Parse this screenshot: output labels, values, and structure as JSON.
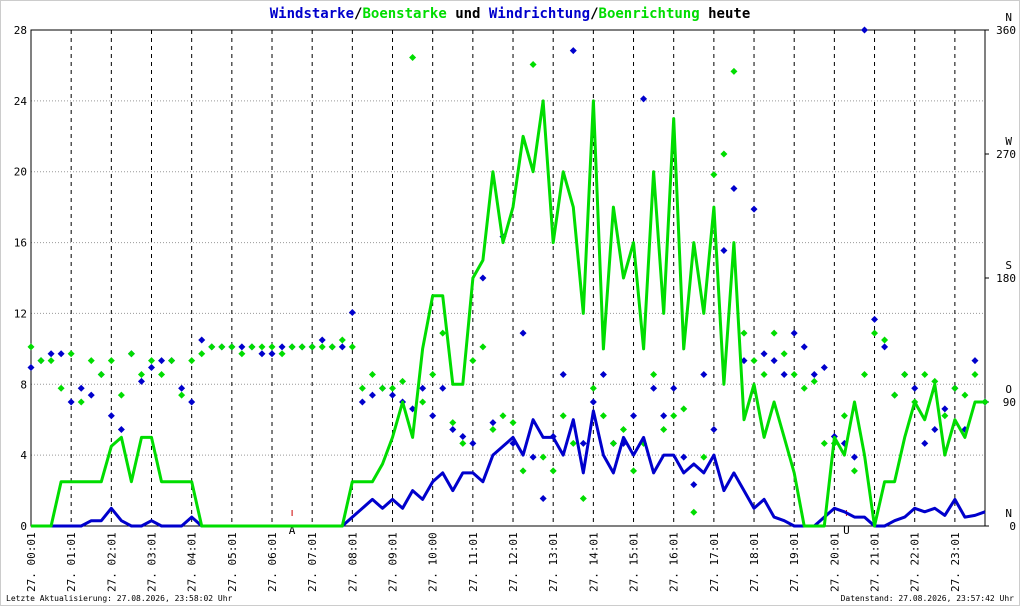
{
  "chart_data": {
    "type": "line",
    "title_parts": [
      {
        "text": "Windstarke",
        "color": "#0000cc"
      },
      {
        "text": "/",
        "color": "#000000"
      },
      {
        "text": "Boenstarke",
        "color": "#00dd00"
      },
      {
        "text": " und ",
        "color": "#000000"
      },
      {
        "text": "Windrichtung",
        "color": "#0000cc"
      },
      {
        "text": "/",
        "color": "#000000"
      },
      {
        "text": "Boenrichtung",
        "color": "#00dd00"
      },
      {
        "text": " heute",
        "color": "#000000"
      }
    ],
    "footer_left": "Letzte Aktualisierung: 27.08.2026, 23:58:02 Uhr",
    "footer_right": "Datenstand: 27.08.2026, 23:57:42 Uhr",
    "xlim": [
      0,
      23.75
    ],
    "xticks": [
      {
        "value": 0,
        "label": "27. 00:01"
      },
      {
        "value": 1,
        "label": "27. 01:01"
      },
      {
        "value": 2,
        "label": "27. 02:01"
      },
      {
        "value": 3,
        "label": "27. 03:01"
      },
      {
        "value": 4,
        "label": "27. 04:01"
      },
      {
        "value": 5,
        "label": "27. 05:01"
      },
      {
        "value": 6,
        "label": "27. 06:01"
      },
      {
        "value": 7,
        "label": "27. 07:01"
      },
      {
        "value": 8,
        "label": "27. 08:01"
      },
      {
        "value": 9,
        "label": "27. 09:01"
      },
      {
        "value": 10,
        "label": "27. 10:00"
      },
      {
        "value": 11,
        "label": "27. 11:01"
      },
      {
        "value": 12,
        "label": "27. 12:01"
      },
      {
        "value": 13,
        "label": "27. 13:01"
      },
      {
        "value": 14,
        "label": "27. 14:01"
      },
      {
        "value": 15,
        "label": "27. 15:01"
      },
      {
        "value": 16,
        "label": "27. 16:01"
      },
      {
        "value": 17,
        "label": "27. 17:01"
      },
      {
        "value": 18,
        "label": "27. 18:01"
      },
      {
        "value": 19,
        "label": "27. 19:01"
      },
      {
        "value": 20,
        "label": "27. 20:01"
      },
      {
        "value": 21,
        "label": "27. 21:01"
      },
      {
        "value": 22,
        "label": "27. 22:01"
      },
      {
        "value": 23,
        "label": "27. 23:01"
      }
    ],
    "ylim": [
      0,
      28
    ],
    "yticks": [
      0,
      4,
      8,
      12,
      16,
      20,
      24,
      28
    ],
    "y2lim": [
      0,
      360
    ],
    "y2ticks": [
      0,
      90,
      180,
      270,
      360
    ],
    "y2tick_letters": [
      "N",
      "O",
      "S",
      "W",
      "N"
    ],
    "grid": true,
    "annotations": [
      {
        "x": 6.5,
        "text": "A",
        "color": "#cc0000"
      },
      {
        "x": 20.3,
        "text": "U",
        "color": "#cc0000"
      }
    ],
    "x": [
      0,
      0.25,
      0.5,
      0.75,
      1,
      1.25,
      1.5,
      1.75,
      2,
      2.25,
      2.5,
      2.75,
      3,
      3.25,
      3.5,
      3.75,
      4,
      4.25,
      4.5,
      4.75,
      5,
      5.25,
      5.5,
      5.75,
      6,
      6.25,
      6.5,
      6.75,
      7,
      7.25,
      7.5,
      7.75,
      8,
      8.25,
      8.5,
      8.75,
      9,
      9.25,
      9.5,
      9.75,
      10,
      10.25,
      10.5,
      10.75,
      11,
      11.25,
      11.5,
      11.75,
      12,
      12.25,
      12.5,
      12.75,
      13,
      13.25,
      13.5,
      13.75,
      14,
      14.25,
      14.5,
      14.75,
      15,
      15.25,
      15.5,
      15.75,
      16,
      16.25,
      16.5,
      16.75,
      17,
      17.25,
      17.5,
      17.75,
      18,
      18.25,
      18.5,
      18.75,
      19,
      19.25,
      19.5,
      19.75,
      20,
      20.25,
      20.5,
      20.75,
      21,
      21.25,
      21.5,
      21.75,
      22,
      22.25,
      22.5,
      22.75,
      23,
      23.25,
      23.5,
      23.75
    ],
    "series": [
      {
        "name": "Windstarke",
        "kind": "line",
        "color": "#0000cc",
        "values": [
          0,
          0,
          0,
          0,
          0,
          0,
          0.3,
          0.3,
          1,
          0.3,
          0,
          0,
          0.3,
          0,
          0,
          0,
          0.5,
          0,
          0,
          0,
          0,
          0,
          0,
          0,
          0,
          0,
          0,
          0,
          0,
          0,
          0,
          0,
          0.5,
          1,
          1.5,
          1,
          1.5,
          1,
          2,
          1.5,
          2.5,
          3,
          2,
          3,
          3,
          2.5,
          4,
          4.5,
          5,
          4,
          6,
          5,
          5,
          4,
          6,
          3,
          6.5,
          4,
          3,
          5,
          4,
          5,
          3,
          4,
          4,
          3,
          3.5,
          3,
          4,
          2,
          3,
          2,
          1,
          1.5,
          0.5,
          0.3,
          0,
          0,
          0,
          0.5,
          1,
          0.8,
          0.5,
          0.5,
          0,
          0,
          0.3,
          0.5,
          1,
          0.8,
          1,
          0.6,
          1.5,
          0.5,
          0.6,
          0.8
        ]
      },
      {
        "name": "Boenstarke",
        "kind": "line",
        "color": "#00dd00",
        "values": [
          0,
          0,
          0,
          2.5,
          2.5,
          2.5,
          2.5,
          2.5,
          4.5,
          5,
          2.5,
          5,
          5,
          2.5,
          2.5,
          2.5,
          2.5,
          0,
          0,
          0,
          0,
          0,
          0,
          0,
          0,
          0,
          0,
          0,
          0,
          0,
          0,
          0,
          2.5,
          2.5,
          2.5,
          3.5,
          5,
          7,
          5,
          10,
          13,
          13,
          8,
          8,
          14,
          15,
          20,
          16,
          18,
          22,
          20,
          24,
          16,
          20,
          18,
          12,
          24,
          10,
          18,
          14,
          16,
          10,
          20,
          12,
          23,
          10,
          16,
          12,
          18,
          8,
          16,
          6,
          8,
          5,
          7,
          5,
          3,
          0,
          0,
          0,
          5,
          4,
          7,
          4,
          0,
          2.5,
          2.5,
          5,
          7,
          6,
          8,
          4,
          6,
          5,
          7,
          7
        ]
      },
      {
        "name": "Windrichtung",
        "kind": "scatter",
        "axis": "y2",
        "color": "#0000cc",
        "values": [
          115,
          120,
          125,
          125,
          90,
          100,
          95,
          110,
          80,
          70,
          125,
          105,
          115,
          120,
          120,
          100,
          90,
          135,
          130,
          130,
          130,
          130,
          130,
          125,
          125,
          130,
          130,
          130,
          130,
          135,
          130,
          130,
          155,
          90,
          95,
          100,
          95,
          90,
          85,
          100,
          80,
          100,
          70,
          65,
          60,
          180,
          75,
          210,
          60,
          140,
          50,
          20,
          65,
          110,
          345,
          60,
          90,
          110,
          60,
          60,
          80,
          310,
          100,
          80,
          100,
          50,
          30,
          110,
          70,
          200,
          245,
          120,
          230,
          125,
          120,
          110,
          140,
          130,
          110,
          115,
          65,
          60,
          50,
          360,
          150,
          130,
          95,
          110,
          100,
          60,
          70,
          85,
          100,
          70,
          120,
          90
        ]
      },
      {
        "name": "Boenrichtung",
        "kind": "scatter",
        "axis": "y2",
        "color": "#00dd00",
        "values": [
          130,
          120,
          120,
          100,
          125,
          90,
          120,
          110,
          120,
          95,
          125,
          110,
          120,
          110,
          120,
          95,
          120,
          125,
          130,
          130,
          130,
          125,
          130,
          130,
          130,
          125,
          130,
          130,
          130,
          130,
          130,
          135,
          130,
          100,
          110,
          100,
          100,
          105,
          340,
          90,
          110,
          140,
          75,
          60,
          120,
          130,
          70,
          80,
          75,
          40,
          335,
          50,
          40,
          80,
          60,
          20,
          100,
          80,
          60,
          70,
          40,
          60,
          110,
          70,
          80,
          85,
          10,
          50,
          255,
          270,
          330,
          140,
          120,
          110,
          140,
          125,
          110,
          100,
          105,
          60,
          60,
          80,
          40,
          110,
          140,
          135,
          95,
          110,
          90,
          110,
          105,
          80,
          100,
          95,
          110,
          90
        ]
      }
    ]
  }
}
